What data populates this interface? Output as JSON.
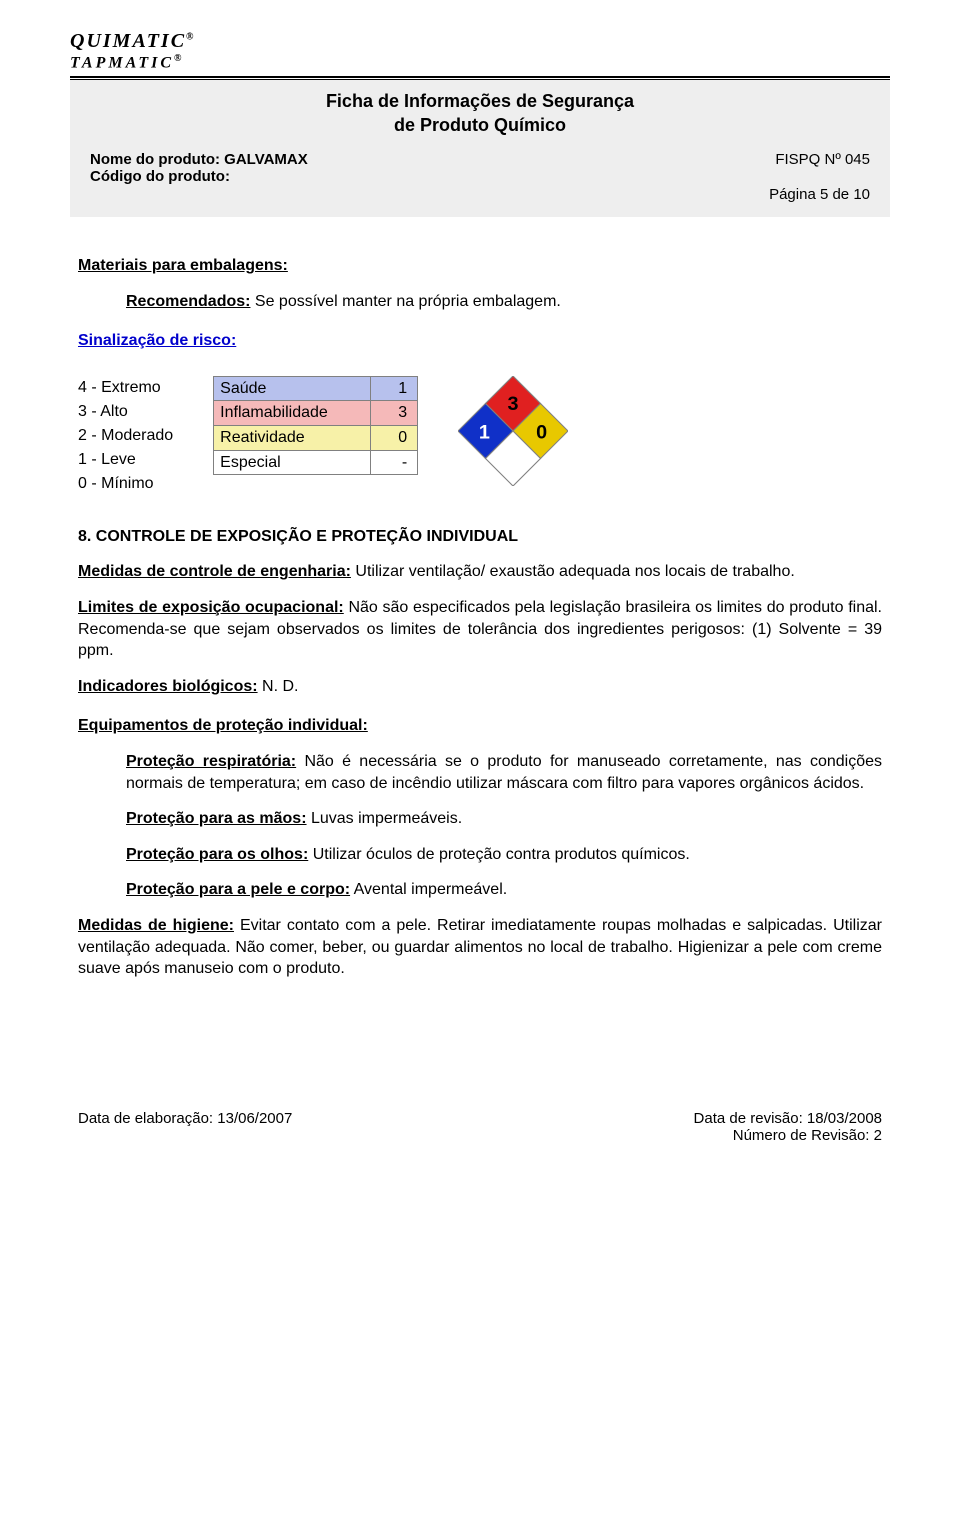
{
  "logo": {
    "line1": "QUIMATIC",
    "line2": "TAPMATIC",
    "reg": "®"
  },
  "header": {
    "title_l1": "Ficha de Informações de Segurança",
    "title_l2": "de Produto Químico",
    "product_name_label": "Nome do produto: ",
    "product_name": "GALVAMAX",
    "product_code_label": "Código do produto:",
    "fispq": "FISPQ Nº 045",
    "page": "Página 5 de 10"
  },
  "sec_materials_heading": "Materiais para embalagens:",
  "recommended_label": "Recomendados:",
  "recommended_text": " Se possível manter na própria embalagem.",
  "sec_risk_heading": "Sinalização de risco:",
  "risk_legend": {
    "l0": "4 - Extremo",
    "l1": "3 - Alto",
    "l2": "2 - Moderado",
    "l3": "1 - Leve",
    "l4": "0 - Mínimo"
  },
  "risk_table": {
    "rows": [
      {
        "label": "Saúde",
        "value": "1",
        "bg": "#b7c1ed"
      },
      {
        "label": "Inflamabilidade",
        "value": "3",
        "bg": "#f5b9b9"
      },
      {
        "label": "Reatividade",
        "value": "0",
        "bg": "#f7f1a8"
      },
      {
        "label": "Especial",
        "value": "-",
        "bg": "#ffffff"
      }
    ],
    "border": "#808080"
  },
  "nfpa": {
    "health": "1",
    "fire": "3",
    "react": "0",
    "special": "",
    "blue": "#1030c8",
    "red": "#e02020",
    "yellow": "#e8c800",
    "white": "#ffffff",
    "stroke": "#808080"
  },
  "sec8_heading": "8. CONTROLE DE EXPOSIÇÃO E PROTEÇÃO INDIVIDUAL",
  "engineering_label": "Medidas de controle de engenharia:",
  "engineering_text": " Utilizar ventilação/ exaustão adequada nos locais de trabalho.",
  "exposure_label": "Limites de exposição ocupacional:",
  "exposure_text": " Não são especificados pela legislação brasileira os limites do produto final. Recomenda-se que sejam observados os limites de tolerância dos ingredientes perigosos: (1) Solvente = 39 ppm.",
  "bio_label": "Indicadores biológicos:",
  "bio_text": " N. D.",
  "epi_heading": "Equipamentos de proteção individual:",
  "resp_label": "Proteção respiratória:",
  "resp_text": " Não é necessária se o produto for manuseado corretamente, nas condições normais de temperatura; em caso de incêndio utilizar máscara com filtro para vapores orgânicos ácidos.",
  "hands_label": "Proteção para as mãos:",
  "hands_text": " Luvas impermeáveis.",
  "eyes_label": "Proteção para os olhos:",
  "eyes_text": " Utilizar óculos de proteção contra produtos químicos.",
  "skin_label": "Proteção para a pele e corpo:",
  "skin_text": " Avental impermeável.",
  "hygiene_label": "Medidas de higiene:",
  "hygiene_text": " Evitar contato com a pele. Retirar imediatamente roupas molhadas e salpicadas. Utilizar ventilação adequada. Não comer, beber, ou guardar alimentos no local de trabalho. Higienizar a pele com creme suave após manuseio com o produto.",
  "footer": {
    "elab": "Data de elaboração: 13/06/2007",
    "rev": "Data de revisão: 18/03/2008",
    "revnum": "Número de Revisão: 2"
  }
}
